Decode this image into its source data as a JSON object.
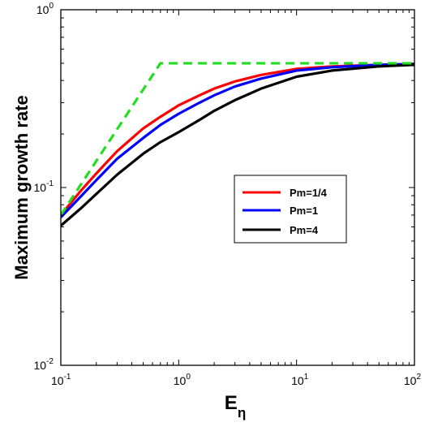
{
  "chart_data": {
    "type": "line",
    "xscale": "log",
    "yscale": "log",
    "xlabel": "E",
    "xlabel_subscript": "η",
    "ylabel": "Maximum growth rate",
    "xlim": [
      0.1,
      100
    ],
    "ylim": [
      0.01,
      1
    ],
    "x_ticks": [
      {
        "base": "10",
        "exp": "-1",
        "value": 0.1
      },
      {
        "base": "10",
        "exp": "0",
        "value": 1
      },
      {
        "base": "10",
        "exp": "1",
        "value": 10
      },
      {
        "base": "10",
        "exp": "2",
        "value": 100
      }
    ],
    "y_ticks": [
      {
        "base": "10",
        "exp": "-2",
        "value": 0.01
      },
      {
        "base": "10",
        "exp": "-1",
        "value": 0.1
      },
      {
        "base": "10",
        "exp": "0",
        "value": 1
      }
    ],
    "grid": false,
    "legend_placement": "center-right",
    "series": [
      {
        "name": "Pm=1/4",
        "color": "#ff0000",
        "style": "solid",
        "x": [
          0.1,
          0.15,
          0.2,
          0.3,
          0.5,
          0.7,
          1,
          1.5,
          2,
          3,
          5,
          10,
          20,
          50,
          100
        ],
        "y": [
          0.07,
          0.097,
          0.12,
          0.16,
          0.215,
          0.25,
          0.29,
          0.33,
          0.36,
          0.395,
          0.43,
          0.465,
          0.48,
          0.49,
          0.495
        ]
      },
      {
        "name": "Pm=1",
        "color": "#0000ff",
        "style": "solid",
        "x": [
          0.1,
          0.15,
          0.2,
          0.3,
          0.5,
          0.7,
          1,
          1.5,
          2,
          3,
          5,
          10,
          20,
          50,
          100
        ],
        "y": [
          0.068,
          0.09,
          0.11,
          0.145,
          0.19,
          0.225,
          0.26,
          0.3,
          0.33,
          0.37,
          0.41,
          0.455,
          0.475,
          0.49,
          0.495
        ]
      },
      {
        "name": "Pm=4",
        "color": "#000000",
        "style": "solid",
        "x": [
          0.1,
          0.15,
          0.2,
          0.3,
          0.5,
          0.7,
          1,
          1.5,
          2,
          3,
          5,
          10,
          20,
          50,
          100
        ],
        "y": [
          0.061,
          0.077,
          0.092,
          0.118,
          0.155,
          0.18,
          0.205,
          0.24,
          0.27,
          0.31,
          0.36,
          0.42,
          0.455,
          0.48,
          0.49
        ]
      },
      {
        "name": "",
        "color": "#22dd22",
        "style": "dashed",
        "x": [
          0.1,
          0.7,
          100
        ],
        "y": [
          0.07,
          0.5,
          0.5
        ]
      }
    ]
  }
}
